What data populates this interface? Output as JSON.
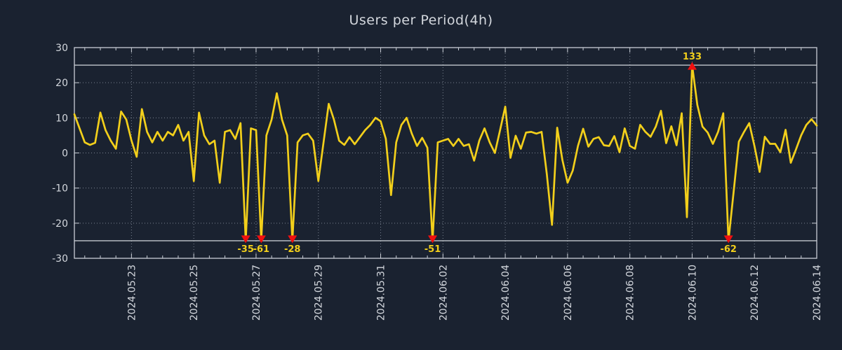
{
  "header": {
    "title": "Users per Period(4h)"
  },
  "chart_data": {
    "type": "line",
    "title": "Users per Period(4h)",
    "period": "4h",
    "xlabel": "",
    "ylabel": "",
    "ylim": [
      -30,
      30
    ],
    "y_ticks": [
      30,
      20,
      10,
      0,
      -10,
      -20,
      -30
    ],
    "clip_value": 25,
    "grid": "dotted",
    "legend_position": "none",
    "x_tick_labels": [
      "2024.05.23",
      "2024.05.25",
      "2024.05.27",
      "2024.05.29",
      "2024.05.31",
      "2024.06.02",
      "2024.06.04",
      "2024.06.06",
      "2024.06.08",
      "2024.06.10",
      "2024.06.12",
      "2024.06.14"
    ],
    "x_label_start_index": 11,
    "x_label_step": 12,
    "points_per_day": 6,
    "values": [
      11,
      7,
      3,
      2.3,
      2.9,
      11.5,
      6.5,
      3.5,
      1.2,
      11.8,
      9.5,
      3.5,
      -1.1,
      12.5,
      6,
      3,
      6,
      3.5,
      6,
      5,
      8,
      3.5,
      6,
      -8,
      11.5,
      5,
      2.5,
      3.5,
      -8.5,
      6,
      6.5,
      4,
      8.5,
      -35,
      7,
      6.5,
      -61,
      5,
      9.5,
      17,
      9.5,
      5,
      -28,
      3,
      5,
      5.5,
      3.5,
      -8,
      3,
      14,
      9.5,
      3.5,
      2.3,
      4.5,
      2.5,
      4.5,
      6.5,
      8,
      10,
      9,
      4,
      -12,
      3,
      8,
      10,
      5.5,
      2,
      4.3,
      1.5,
      -51,
      3,
      3.5,
      4,
      2,
      4,
      2,
      2.5,
      -2.2,
      3.5,
      7,
      3,
      0,
      6.5,
      13.2,
      -1.4,
      4.9,
      1.2,
      5.8,
      6,
      5.5,
      6,
      -6,
      -20.5,
      7.2,
      -2,
      -8.5,
      -5,
      2,
      6.9,
      1.8,
      4,
      4.5,
      2.2,
      2,
      4.8,
      0.2,
      7,
      2,
      1.2,
      8,
      6,
      4.6,
      7.5,
      12,
      2.8,
      7.6,
      2.2,
      11.3,
      -18.3,
      133,
      13.7,
      7.5,
      5.8,
      2.6,
      6,
      11.3,
      -62,
      -11,
      3.2,
      6,
      8.5,
      2,
      -5.4,
      4.6,
      2.6,
      2.6,
      0.2,
      6.6,
      -2.8,
      1,
      5,
      8,
      9.6,
      7.8
    ],
    "annotated_extremes": [
      {
        "index": 33,
        "label": "-35",
        "value": -35,
        "direction": "down"
      },
      {
        "index": 36,
        "label": "-61",
        "value": -61,
        "direction": "down"
      },
      {
        "index": 42,
        "label": "-28",
        "value": -28,
        "direction": "down"
      },
      {
        "index": 69,
        "label": "-51",
        "value": -51,
        "direction": "down"
      },
      {
        "index": 119,
        "label": "133",
        "value": 133,
        "direction": "up"
      },
      {
        "index": 126,
        "label": "-62",
        "value": -62,
        "direction": "down"
      }
    ],
    "colors": {
      "background": "#1a2230",
      "line": "#f2cf1b",
      "extreme_marker": "#f01010",
      "extreme_label": "#f2cf1b",
      "grid": "#9aa3b1",
      "axis": "#c9ced6",
      "clip_line": "#e8ecf0",
      "text": "#d3d7dd"
    }
  }
}
